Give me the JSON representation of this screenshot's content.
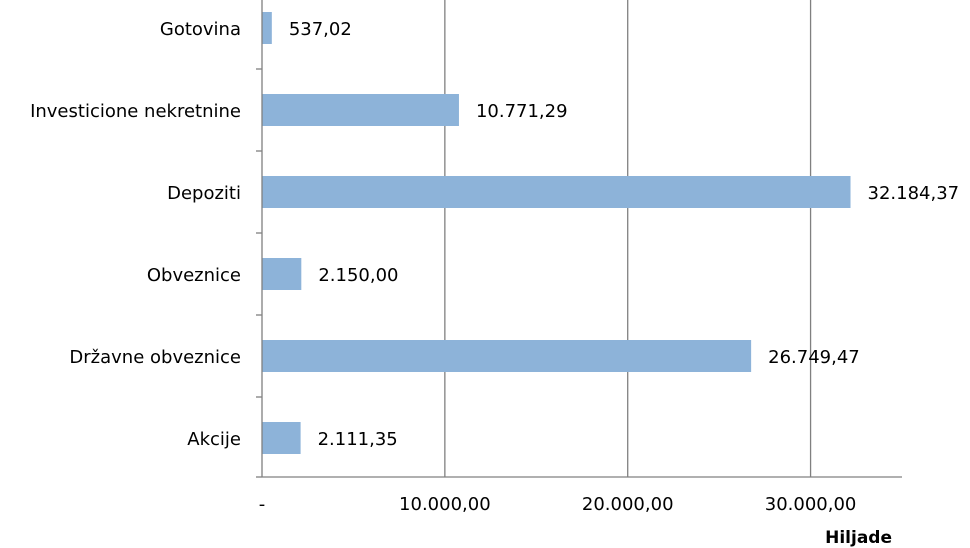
{
  "chart_data": {
    "type": "bar",
    "orientation": "horizontal",
    "categories": [
      "Gotovina",
      "Investicione nekretnine",
      "Depoziti",
      "Obveznice",
      "Državne obveznice",
      "Akcije"
    ],
    "values": [
      537.02,
      10771.29,
      32184.37,
      2150.0,
      26749.47,
      2111.35
    ],
    "value_labels": [
      "537,02",
      "10.771,29",
      "32.184,37",
      "2.150,00",
      "26.749,47",
      "2.111,35"
    ],
    "xlim": [
      0,
      35000
    ],
    "xticks": [
      0,
      10000,
      20000,
      30000
    ],
    "xtick_labels": [
      "-",
      "10.000,00",
      "20.000,00",
      "30.000,00"
    ],
    "unit_label": "Hiljade",
    "grid": "vertical",
    "bar_color": "#8DB3D9",
    "grid_color": "#808080",
    "axis_color": "#808080",
    "legend": "none"
  }
}
